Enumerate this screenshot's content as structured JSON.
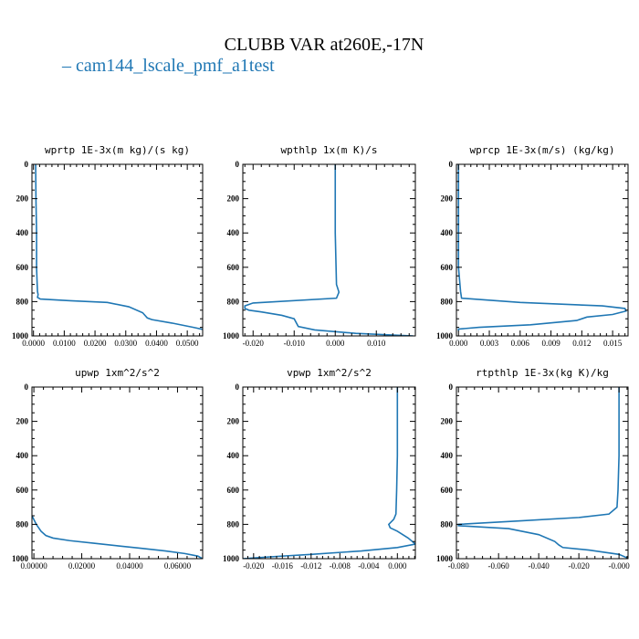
{
  "figure": {
    "title": "CLUBB VAR at260E,-17N",
    "legend_label": "cam144_lscale_pmf_a1test",
    "line_color": "#1f77b4"
  },
  "chart_data": [
    {
      "type": "line",
      "title": "wprtp  1E-3x(m kg)/(s kg)",
      "xlim": [
        -0.0005,
        0.055
      ],
      "ylim": [
        1000,
        0
      ],
      "xticks": [
        0.0,
        0.01,
        0.02,
        0.03,
        0.04,
        0.05
      ],
      "xtick_labels": [
        "0.0000",
        "0.0100",
        "0.0200",
        "0.0300",
        "0.0400",
        "0.0500"
      ],
      "yticks": [
        0,
        200,
        400,
        600,
        800,
        1000
      ],
      "series": [
        {
          "x": [
            0.0007,
            0.0008,
            0.001,
            0.001,
            0.0012,
            0.0013,
            0.0015,
            0.0013,
            0.0022,
            0.012,
            0.024,
            0.031,
            0.0355,
            0.037,
            0.0385,
            0.045,
            0.052,
            0.055
          ],
          "y": [
            0,
            200,
            400,
            600,
            700,
            740,
            760,
            775,
            785,
            795,
            805,
            830,
            865,
            895,
            905,
            925,
            950,
            962
          ]
        }
      ]
    },
    {
      "type": "line",
      "title": "wpthlp  1x(m K)/s",
      "xlim": [
        -0.0225,
        0.0195
      ],
      "ylim": [
        1000,
        0
      ],
      "xticks": [
        -0.02,
        -0.01,
        0.0,
        0.01
      ],
      "xtick_labels": [
        "-0.020",
        "-0.010",
        "0.000",
        "0.010"
      ],
      "yticks": [
        0,
        200,
        400,
        600,
        800,
        1000
      ],
      "series": [
        {
          "x": [
            0.0,
            0.0,
            0.0,
            0.0002,
            0.0003,
            0.0009,
            0.0003,
            -0.02,
            -0.022,
            -0.022,
            -0.021,
            -0.018,
            -0.013,
            -0.01,
            -0.009,
            -0.005,
            0.005,
            0.019
          ],
          "y": [
            0,
            200,
            400,
            600,
            700,
            745,
            780,
            808,
            825,
            840,
            850,
            860,
            880,
            900,
            945,
            965,
            985,
            1000
          ]
        }
      ]
    },
    {
      "type": "line",
      "title": "wprcp  1E-3x(m/s) (kg/kg)",
      "xlim": [
        -0.0002,
        0.0165
      ],
      "ylim": [
        1000,
        0
      ],
      "xticks": [
        0.0,
        0.003,
        0.006,
        0.009,
        0.012,
        0.015
      ],
      "xtick_labels": [
        "0.000",
        "0.003",
        "0.006",
        "0.009",
        "0.012",
        "0.015"
      ],
      "yticks": [
        0,
        200,
        400,
        600,
        800,
        1000
      ],
      "series": [
        {
          "x": [
            0.0,
            0.0,
            0.0,
            0.0,
            0.0002,
            0.0003,
            0.006,
            0.014,
            0.0162,
            0.0163,
            0.015,
            0.0125,
            0.0115,
            0.007,
            0.002,
            0.0,
            0.0
          ],
          "y": [
            0,
            200,
            400,
            600,
            740,
            780,
            805,
            825,
            840,
            855,
            875,
            890,
            910,
            935,
            950,
            960,
            970
          ]
        }
      ]
    },
    {
      "type": "line",
      "title": "upwp  1xm^2/s^2",
      "xlim": [
        -0.0008,
        0.0705
      ],
      "ylim": [
        1000,
        0
      ],
      "xticks": [
        0.0,
        0.02,
        0.04,
        0.06
      ],
      "xtick_labels": [
        "0.00000",
        "0.02000",
        "0.04000",
        "0.06000"
      ],
      "yticks": [
        0,
        200,
        400,
        600,
        800,
        1000
      ],
      "series": [
        {
          "x": [
            -0.0008,
            0.001,
            0.003,
            0.005,
            0.008,
            0.015,
            0.025,
            0.035,
            0.045,
            0.055,
            0.063,
            0.0685,
            0.0705
          ],
          "y": [
            750,
            800,
            840,
            865,
            880,
            895,
            910,
            925,
            940,
            955,
            970,
            985,
            1000
          ]
        }
      ]
    },
    {
      "type": "line",
      "title": "vpwp  1xm^2/s^2",
      "xlim": [
        -0.0215,
        0.0025
      ],
      "ylim": [
        1000,
        0
      ],
      "xticks": [
        -0.02,
        -0.016,
        -0.012,
        -0.008,
        -0.004,
        0.0
      ],
      "xtick_labels": [
        "-0.020",
        "-0.016",
        "-0.012",
        "-0.008",
        "-0.004",
        "0.000"
      ],
      "yticks": [
        0,
        200,
        400,
        600,
        800,
        1000
      ],
      "series": [
        {
          "x": [
            0.0,
            0.0,
            0.0,
            -0.0001,
            -0.0002,
            -0.0005,
            -0.0012,
            -0.001,
            0.0,
            0.0015,
            0.0025,
            0.0,
            -0.005,
            -0.012,
            -0.018,
            -0.0215
          ],
          "y": [
            0,
            200,
            400,
            600,
            740,
            770,
            800,
            820,
            840,
            880,
            915,
            935,
            955,
            975,
            990,
            1000
          ]
        }
      ]
    },
    {
      "type": "line",
      "title": "rtpthlp  1E-3x(kg K)/kg",
      "xlim": [
        -0.081,
        0.0045
      ],
      "ylim": [
        1000,
        0
      ],
      "xticks": [
        -0.08,
        -0.06,
        -0.04,
        -0.02,
        0.0
      ],
      "xtick_labels": [
        "-0.080",
        "-0.060",
        "-0.040",
        "-0.020",
        "-0.000"
      ],
      "yticks": [
        0,
        200,
        400,
        600,
        800,
        1000
      ],
      "series": [
        {
          "x": [
            0.0,
            0.0,
            0.0,
            -0.0005,
            -0.001,
            -0.005,
            -0.02,
            -0.05,
            -0.08,
            -0.08,
            -0.055,
            -0.04,
            -0.032,
            -0.03,
            -0.028,
            -0.015,
            0.0,
            0.004
          ],
          "y": [
            0,
            200,
            400,
            600,
            700,
            740,
            760,
            780,
            800,
            808,
            825,
            860,
            900,
            920,
            935,
            950,
            975,
            995
          ]
        }
      ]
    }
  ]
}
